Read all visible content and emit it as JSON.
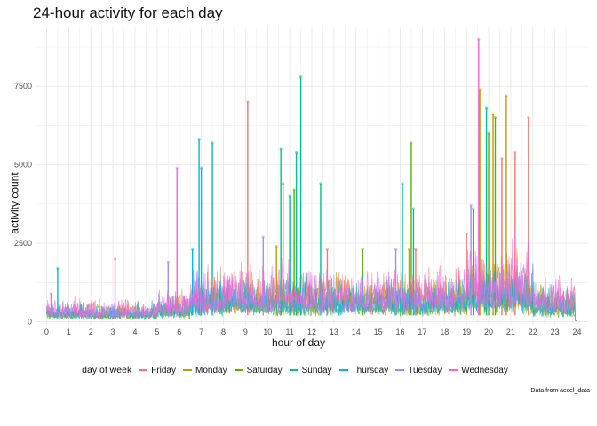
{
  "chart_data": {
    "type": "line",
    "title": "24-hour activity for each day",
    "xlabel": "hour of day",
    "ylabel": "activity count",
    "caption": "Data from accel_data",
    "xlim": [
      -0.5,
      24.5
    ],
    "ylim": [
      -100,
      9400
    ],
    "x_ticks": [
      0,
      1,
      2,
      3,
      4,
      5,
      6,
      7,
      8,
      9,
      10,
      11,
      12,
      13,
      14,
      15,
      16,
      17,
      18,
      19,
      20,
      21,
      22,
      23,
      24
    ],
    "x_tick_labels": [
      "0",
      "1",
      "2",
      "3",
      "4",
      "5",
      "6",
      "7",
      "8",
      "9",
      "10",
      "11",
      "12",
      "13",
      "14",
      "15",
      "16",
      "17",
      "18",
      "19",
      "20",
      "21",
      "22",
      "23",
      "24"
    ],
    "y_ticks": [
      0,
      2500,
      5000,
      7500
    ],
    "y_tick_labels": [
      "0",
      "2500",
      "5000",
      "7500"
    ],
    "grid": true,
    "legend": {
      "title": "day of week",
      "position": "bottom",
      "entries": [
        "Friday",
        "Monday",
        "Saturday",
        "Sunday",
        "Thursday",
        "Tuesday",
        "Wednesday"
      ]
    },
    "series": [
      {
        "name": "Friday",
        "color": "#F8766D",
        "base": 900,
        "peaks": [
          [
            9.1,
            7000
          ],
          [
            19.0,
            2800
          ],
          [
            20.6,
            5200
          ],
          [
            21.2,
            5400
          ],
          [
            21.8,
            6500
          ],
          [
            16.7,
            2300
          ],
          [
            12.7,
            2300
          ]
        ]
      },
      {
        "name": "Monday",
        "color": "#C49A00",
        "base": 850,
        "peaks": [
          [
            19.6,
            7400
          ],
          [
            20.8,
            7200
          ],
          [
            20.2,
            6600
          ],
          [
            16.4,
            2300
          ],
          [
            10.4,
            2400
          ]
        ]
      },
      {
        "name": "Saturday",
        "color": "#53B400",
        "base": 700,
        "peaks": [
          [
            20.0,
            6000
          ],
          [
            20.3,
            6500
          ],
          [
            16.5,
            5700
          ],
          [
            10.7,
            4400
          ],
          [
            11.2,
            4200
          ],
          [
            14.3,
            2300
          ]
        ]
      },
      {
        "name": "Sunday",
        "color": "#00C094",
        "base": 750,
        "peaks": [
          [
            11.5,
            7800
          ],
          [
            10.6,
            5500
          ],
          [
            11.0,
            4000
          ],
          [
            11.3,
            5400
          ],
          [
            12.4,
            4400
          ],
          [
            16.1,
            4400
          ],
          [
            19.9,
            6800
          ],
          [
            7.5,
            5700
          ],
          [
            16.6,
            3600
          ]
        ]
      },
      {
        "name": "Thursday",
        "color": "#00B6EB",
        "base": 800,
        "peaks": [
          [
            6.9,
            5800
          ],
          [
            7.0,
            4900
          ],
          [
            0.5,
            1700
          ],
          [
            19.3,
            3600
          ],
          [
            6.6,
            2300
          ]
        ]
      },
      {
        "name": "Tuesday",
        "color": "#A58AFF",
        "base": 900,
        "peaks": [
          [
            19.2,
            3700
          ],
          [
            9.8,
            2700
          ],
          [
            5.5,
            1900
          ],
          [
            15.8,
            2300
          ]
        ]
      },
      {
        "name": "Wednesday",
        "color": "#FB61D7",
        "base": 1050,
        "peaks": [
          [
            19.55,
            9000
          ],
          [
            5.9,
            4900
          ],
          [
            3.1,
            2000
          ],
          [
            0.2,
            900
          ]
        ]
      }
    ]
  }
}
